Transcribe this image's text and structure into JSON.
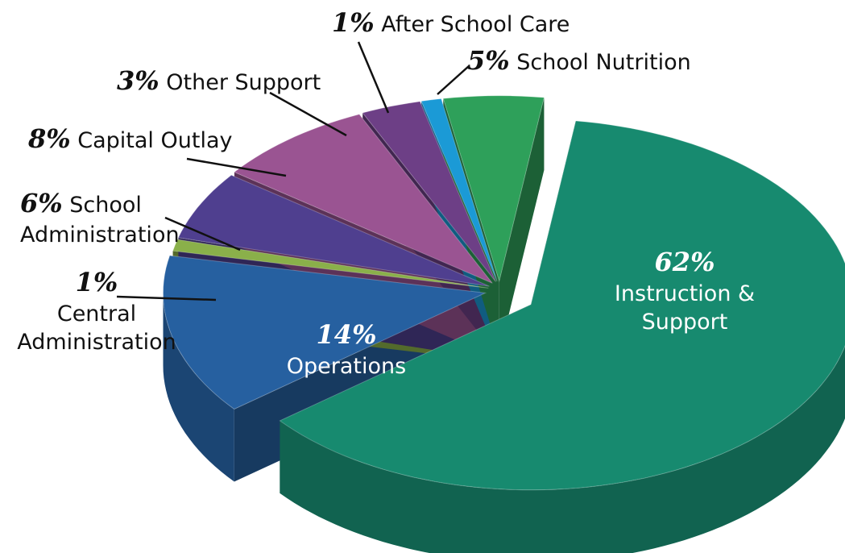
{
  "chart_data": {
    "type": "pie",
    "categories": [
      "Instruction & Support",
      "Operations",
      "Central Administration",
      "School Administration",
      "Capital Outlay",
      "Other Support",
      "After School Care",
      "School Nutrition"
    ],
    "values": [
      62,
      14,
      1,
      6,
      8,
      3,
      1,
      5
    ],
    "value_labels": [
      "62%",
      "14%",
      "1%",
      "6%",
      "8%",
      "3%",
      "1%",
      "5%"
    ],
    "colors": [
      "#178a6f",
      "#2660a0",
      "#8ab04a",
      "#4f3f8f",
      "#9a5492",
      "#6d3f86",
      "#1b9ad6",
      "#2ea05a"
    ]
  }
}
